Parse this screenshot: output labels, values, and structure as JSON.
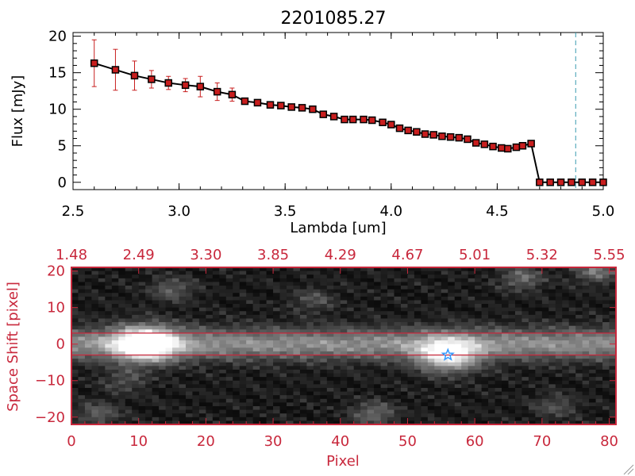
{
  "colors": {
    "background": "#ffffff",
    "axis": "#000000",
    "line": "#000000",
    "marker_fill": "#c81e1e",
    "error_bar": "#c81e1e",
    "cutoff_line": "#3a9ab0",
    "accent_red": "#c8283c",
    "star": "#3399ff"
  },
  "chart_data": [
    {
      "type": "line",
      "title": "2201085.27",
      "xlabel": "Lambda [um]",
      "ylabel": "Flux [mJy]",
      "xlim": [
        2.5,
        5.0
      ],
      "ylim": [
        -1,
        20.5
      ],
      "xticks": [
        2.5,
        3.0,
        3.5,
        4.0,
        4.5,
        5.0
      ],
      "xtick_labels": [
        "2.5",
        "3.0",
        "3.5",
        "4.0",
        "4.5",
        "5.0"
      ],
      "yticks": [
        0,
        5,
        10,
        15,
        20
      ],
      "ytick_labels": [
        "0",
        "5",
        "10",
        "15",
        "20"
      ],
      "grid": false,
      "vline": 4.87,
      "series": [
        {
          "x": [
            2.6,
            2.7,
            2.79,
            2.87,
            2.95,
            3.03,
            3.1,
            3.18,
            3.25,
            3.31,
            3.37,
            3.43,
            3.48,
            3.53,
            3.58,
            3.63,
            3.68,
            3.73,
            3.78,
            3.82,
            3.87,
            3.91,
            3.96,
            4.0,
            4.04,
            4.08,
            4.12,
            4.16,
            4.2,
            4.24,
            4.28,
            4.32,
            4.36,
            4.4,
            4.44,
            4.48,
            4.52,
            4.55,
            4.59,
            4.62,
            4.66,
            4.7,
            4.75,
            4.8,
            4.85,
            4.9,
            4.95,
            5.0
          ],
          "y": [
            16.3,
            15.4,
            14.6,
            14.1,
            13.6,
            13.3,
            13.1,
            12.4,
            12.0,
            11.1,
            10.9,
            10.6,
            10.5,
            10.3,
            10.2,
            10.0,
            9.3,
            9.0,
            8.6,
            8.6,
            8.6,
            8.5,
            8.2,
            7.9,
            7.4,
            7.1,
            6.9,
            6.6,
            6.5,
            6.3,
            6.2,
            6.1,
            5.9,
            5.4,
            5.2,
            4.9,
            4.7,
            4.6,
            4.8,
            5.0,
            5.3,
            0,
            0,
            0,
            0,
            0,
            0,
            0
          ],
          "yerr": [
            3.2,
            2.8,
            2.0,
            1.2,
            0.9,
            0.9,
            1.4,
            1.2,
            0.9,
            0.4,
            0.3,
            0.3,
            0.3,
            0.3,
            0.3,
            0.3,
            0.2,
            0.2,
            0.2,
            0.2,
            0.2,
            0.2,
            0.2,
            0.2,
            0.2,
            0.2,
            0.2,
            0.2,
            0.2,
            0.2,
            0.2,
            0.2,
            0.2,
            0.2,
            0.2,
            0.2,
            0.2,
            0.2,
            0.2,
            0.3,
            0.4,
            0,
            0,
            0,
            0,
            0,
            0,
            0
          ]
        }
      ]
    },
    {
      "type": "heatmap",
      "title": "",
      "xlabel": "Pixel",
      "ylabel": "Space Shift [pixel]",
      "xlim": [
        0,
        81
      ],
      "ylim": [
        -22,
        21
      ],
      "xticks": [
        0,
        10,
        20,
        30,
        40,
        50,
        60,
        70,
        80
      ],
      "xtick_labels": [
        "0",
        "10",
        "20",
        "30",
        "40",
        "50",
        "60",
        "70",
        "80"
      ],
      "yticks": [
        -20,
        -10,
        0,
        10,
        20
      ],
      "ytick_labels": [
        "−20",
        "−10",
        "0",
        "10",
        "20"
      ],
      "top_axis_ticks": [
        0,
        10,
        20,
        30,
        40,
        50,
        60,
        70,
        80
      ],
      "top_axis_labels": [
        "1.48",
        "2.49",
        "3.30",
        "3.85",
        "4.29",
        "4.67",
        "5.01",
        "5.32",
        "5.55"
      ],
      "h_lines": [
        3,
        -3
      ],
      "source_marker": {
        "x": 56,
        "y": -3,
        "symbol": "star"
      },
      "bright_sources": [
        {
          "x": 11,
          "y": 0,
          "strength": 1.0,
          "size": "large"
        },
        {
          "x": 56,
          "y": -3,
          "strength": 0.75,
          "size": "large"
        },
        {
          "x": 67,
          "y": 18,
          "strength": 0.3,
          "size": "small"
        },
        {
          "x": 78,
          "y": 20,
          "strength": 0.35,
          "size": "small"
        },
        {
          "x": 45,
          "y": -19,
          "strength": 0.3,
          "size": "small"
        },
        {
          "x": 4,
          "y": -19,
          "strength": 0.25,
          "size": "small"
        },
        {
          "x": 72,
          "y": -17,
          "strength": 0.2,
          "size": "small"
        },
        {
          "x": 15,
          "y": 15,
          "strength": 0.25,
          "size": "small"
        },
        {
          "x": 8,
          "y": -10,
          "strength": 0.2,
          "size": "small"
        },
        {
          "x": 36,
          "y": 12,
          "strength": 0.2,
          "size": "small"
        }
      ],
      "trace": {
        "y": 0,
        "peak": 0.45,
        "width": 3
      }
    }
  ]
}
